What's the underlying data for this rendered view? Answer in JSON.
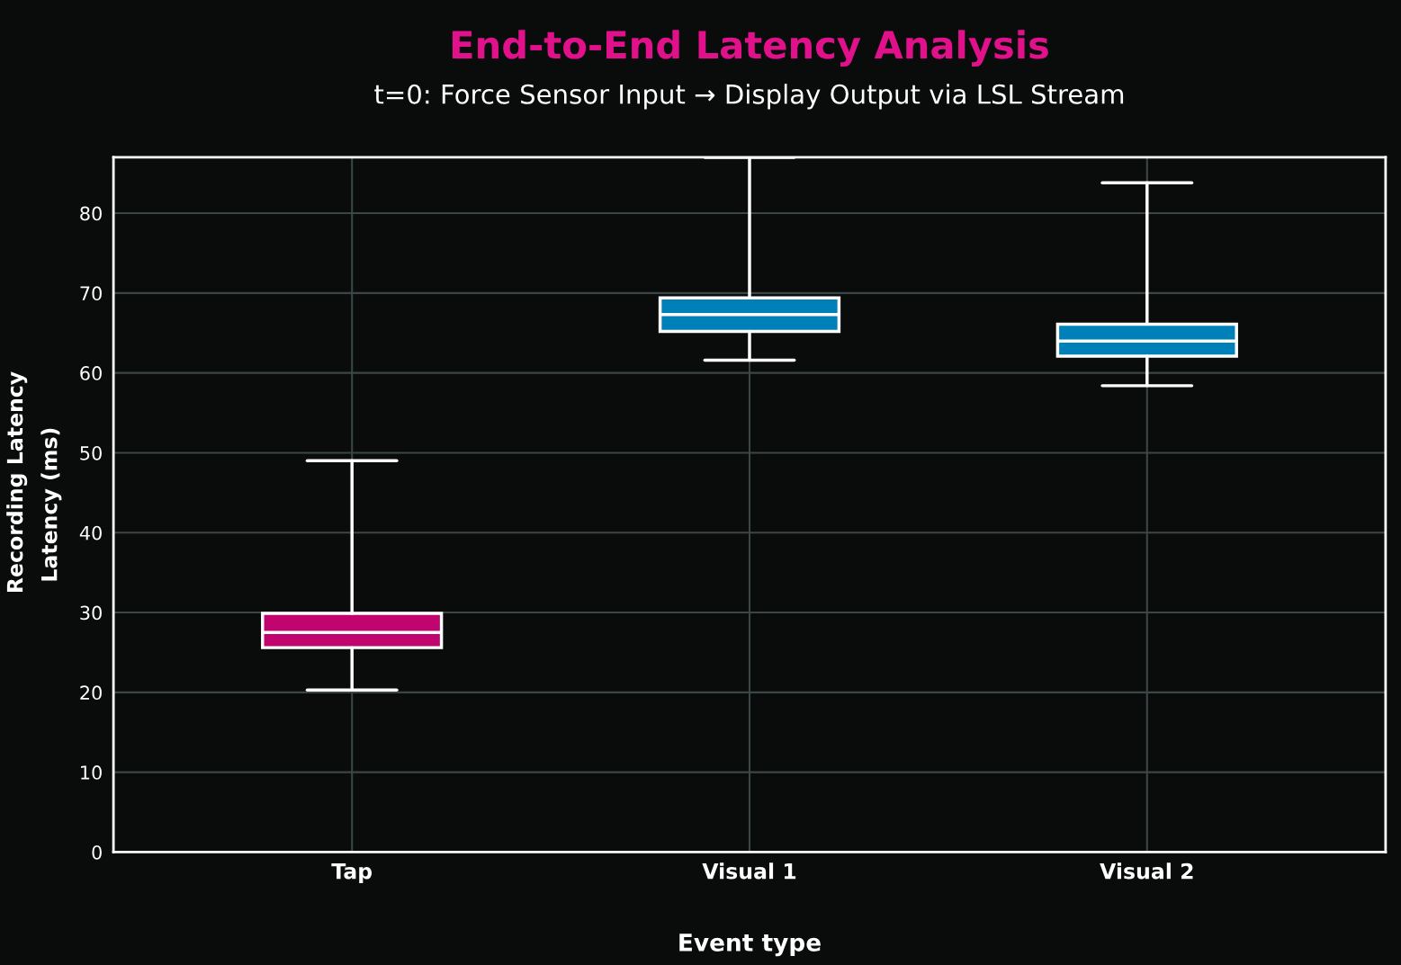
{
  "chart_data": {
    "type": "box",
    "title": "End-to-End Latency Analysis",
    "subtitle": "t=0: Force Sensor Input → Display Output via LSL Stream",
    "xlabel": "Event type",
    "ylabel": "Latency (ms)",
    "annotations": [
      "Recording Latency"
    ],
    "categories": [
      "Tap",
      "Visual 1",
      "Visual 2"
    ],
    "colors": [
      "#c0066e",
      "#0080b8",
      "#0080b8"
    ],
    "boxes": [
      {
        "low": 20.3,
        "q1": 25.6,
        "median": 27.5,
        "q3": 29.9,
        "high": 49.0
      },
      {
        "low": 61.6,
        "q1": 65.2,
        "median": 67.3,
        "q3": 69.4,
        "high": 87.0
      },
      {
        "low": 58.4,
        "q1": 62.1,
        "median": 64.0,
        "q3": 66.1,
        "high": 83.8
      }
    ],
    "ylim": [
      0,
      87
    ],
    "yticks": [
      0,
      10,
      20,
      30,
      40,
      50,
      60,
      70,
      80
    ],
    "grid": true,
    "legend": false
  }
}
